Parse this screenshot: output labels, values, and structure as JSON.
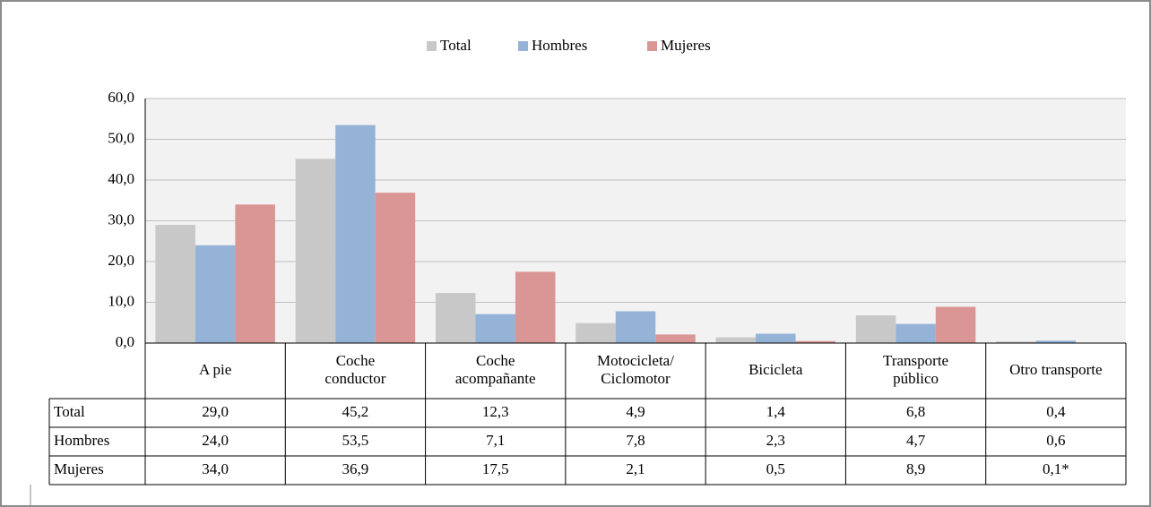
{
  "chart_data": {
    "type": "bar",
    "categories": [
      "A pie",
      "Coche\nconductor",
      "Coche\nacompañante",
      "Motocicleta/\nCiclomotor",
      "Bicicleta",
      "Transporte\npúblico",
      "Otro transporte"
    ],
    "series": [
      {
        "name": "Total",
        "color": "#c8c8c8",
        "values": [
          29.0,
          45.2,
          12.3,
          4.9,
          1.4,
          6.8,
          0.4
        ],
        "value_labels": [
          "29,0",
          "45,2",
          "12,3",
          "4,9",
          "1,4",
          "6,8",
          "0,4"
        ]
      },
      {
        "name": "Hombres",
        "color": "#95b3d7",
        "values": [
          24.0,
          53.5,
          7.1,
          7.8,
          2.3,
          4.7,
          0.6
        ],
        "value_labels": [
          "24,0",
          "53,5",
          "7,1",
          "7,8",
          "2,3",
          "4,7",
          "0,6"
        ]
      },
      {
        "name": "Mujeres",
        "color": "#da9694",
        "values": [
          34.0,
          36.9,
          17.5,
          2.1,
          0.5,
          8.9,
          0.1
        ],
        "value_labels": [
          "34,0",
          "36,9",
          "17,5",
          "2,1",
          "0,5",
          "8,9",
          "0,1*"
        ]
      }
    ],
    "ylim": [
      0,
      60
    ],
    "yticks": [
      {
        "value": 0,
        "label": "0,0"
      },
      {
        "value": 10,
        "label": "10,0"
      },
      {
        "value": 20,
        "label": "20,0"
      },
      {
        "value": 30,
        "label": "30,0"
      },
      {
        "value": 40,
        "label": "40,0"
      },
      {
        "value": 50,
        "label": "50,0"
      },
      {
        "value": 60,
        "label": "60,0"
      }
    ],
    "grid": true,
    "legend": "top"
  }
}
